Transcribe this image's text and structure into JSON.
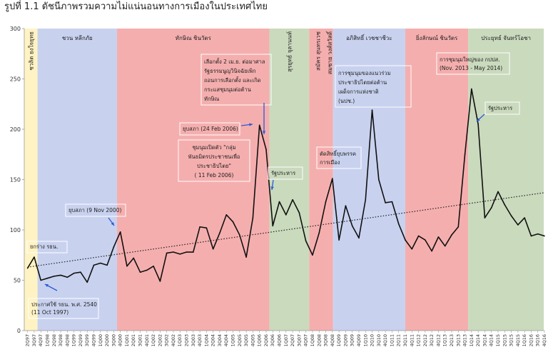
{
  "title": "รูปที่ 1.1 ดัชนีภาพรวมความไม่แน่นอนทางการเมืองในประเทศไทย",
  "chart_data": {
    "type": "line",
    "title": "รูปที่ 1.1 ดัชนีภาพรวมความไม่แน่นอนทางการเมืองในประเทศไทย",
    "xlabel": "",
    "ylabel": "",
    "ylim": [
      0,
      300
    ],
    "yticks": [
      0,
      50,
      100,
      150,
      200,
      250,
      300
    ],
    "grid": false,
    "trendline": {
      "style": "dotted",
      "start": 63,
      "end": 137
    },
    "categories": [
      "2Q97",
      "3Q97",
      "4Q97",
      "1Q98",
      "2Q98",
      "3Q98",
      "4Q98",
      "1Q99",
      "2Q99",
      "3Q99",
      "4Q99",
      "1Q00",
      "2Q00",
      "3Q00",
      "4Q00",
      "1Q01",
      "2Q01",
      "3Q01",
      "4Q01",
      "1Q02",
      "2Q02",
      "3Q02",
      "4Q02",
      "1Q03",
      "2Q03",
      "3Q03",
      "4Q03",
      "1Q04",
      "2Q04",
      "3Q04",
      "4Q04",
      "1Q05",
      "2Q05",
      "3Q05",
      "4Q05",
      "1Q06",
      "2Q06",
      "3Q06",
      "4Q06",
      "1Q07",
      "2Q07",
      "3Q07",
      "4Q07",
      "1Q08",
      "2Q08",
      "3Q08",
      "4Q08",
      "1Q09",
      "2Q09",
      "3Q09",
      "4Q09",
      "1Q10",
      "2Q10",
      "3Q10",
      "4Q10",
      "1Q11",
      "2Q11",
      "3Q11",
      "4Q11",
      "1Q12",
      "2Q12",
      "3Q12",
      "4Q12",
      "1Q13",
      "2Q13",
      "3Q13",
      "4Q13",
      "1Q14",
      "2Q14",
      "3Q14",
      "4Q14",
      "1Q15",
      "2Q15",
      "3Q15",
      "4Q15",
      "1Q16",
      "2Q16",
      "3Q16",
      "4Q16"
    ],
    "series": [
      {
        "values": [
          62,
          73,
          50,
          52,
          54,
          55,
          53,
          57,
          58,
          48,
          65,
          67,
          65,
          83,
          98,
          64,
          72,
          58,
          60,
          64,
          49,
          77,
          78,
          76,
          78,
          78,
          103,
          102,
          81,
          97,
          115,
          108,
          95,
          73,
          112,
          204,
          180,
          104,
          128,
          115,
          130,
          117,
          89,
          75,
          97,
          128,
          151,
          90,
          124,
          104,
          92,
          130,
          219,
          150,
          127,
          128,
          106,
          90,
          81,
          94,
          90,
          79,
          93,
          84,
          95,
          103,
          175,
          240,
          205,
          112,
          122,
          138,
          125,
          114,
          105,
          112,
          94,
          96,
          94
        ]
      }
    ],
    "colors": {
      "line": "#111111",
      "trend": "#222222",
      "red": "#f4aaaa",
      "blue": "#c5d0ee",
      "green": "#c7d8b9",
      "yellow": "#fff2c0"
    },
    "periods": [
      {
        "label": "ชวลิต ยงใจยุทธ",
        "start": 0,
        "end": 2,
        "color": "yellow",
        "vertical": true
      },
      {
        "label": "ชวน หลีกภัย",
        "start": 2,
        "end": 14,
        "color": "blue"
      },
      {
        "label": "ทักษิณ ชินวัตร",
        "start": 14,
        "end": 37,
        "color": "red"
      },
      {
        "label": "สุรยุทธ์ จุลานนท์",
        "start": 37,
        "end": 43,
        "color": "green",
        "vertical": true
      },
      {
        "label": "สมัคร สุนทรเวช",
        "start": 43,
        "end": 45.6,
        "color": "red",
        "vertical": true
      },
      {
        "label": "สมชาย วงศ์สวัสดิ์",
        "start": 45.6,
        "end": 46.6,
        "color": "red",
        "vertical": true
      },
      {
        "label": "อภิสิทธิ์ เวชชาชีวะ",
        "start": 46.6,
        "end": 57.5,
        "color": "blue"
      },
      {
        "label": "ยิ่งลักษณ์ ชินวัตร",
        "start": 57.5,
        "end": 67,
        "color": "red"
      },
      {
        "label": "ประยุทธ์ จันทร์โอชา",
        "start": 67,
        "end": 78.4,
        "color": "green"
      }
    ],
    "annotations": {
      "draft": "ยกร่าง รธน.",
      "promulgate": [
        "ประกาศใช้ รธน. พ.ศ. 2540",
        "(11 Oct 1997)"
      ],
      "dissolve2000": "ยุบสภา (9 Nov 2000)",
      "election2apr": [
        "เลือกตั้ง 2 เม.ย. ต่อมาศาล",
        "รัฐธรรมนูญวินิจฉัยเพิก",
        "ถอนการเลือกตั้ง และเกิด",
        "กระแสชุมนุมต่อต้าน",
        "ทักษิณ"
      ],
      "dissolve2006": "ยุบสภา (24 Feb 2006)",
      "pad": [
        "ชุมนุมเปิดตัว \"กลุ่ม",
        "พันธมิตรประชาชนเพื่อ",
        "ประชาธิปไตย\"",
        "( 11 Feb 2006)"
      ],
      "coup2006": "รัฐประหาร",
      "partyban": [
        "ตัดสิทธิ์ยุบพรรค",
        "การเมือง"
      ],
      "udd": [
        "การชุมนุมของแนวร่วม",
        "ประชาธิปไตยต่อต้าน",
        "เผด็จการแห่งชาติ",
        "(นปช.)"
      ],
      "pdrc": [
        "การชุมนุมใหญ่ของ กปปส.",
        "(Nov. 2013 - May 2014)"
      ],
      "coup2014": "รัฐประหาร"
    }
  }
}
